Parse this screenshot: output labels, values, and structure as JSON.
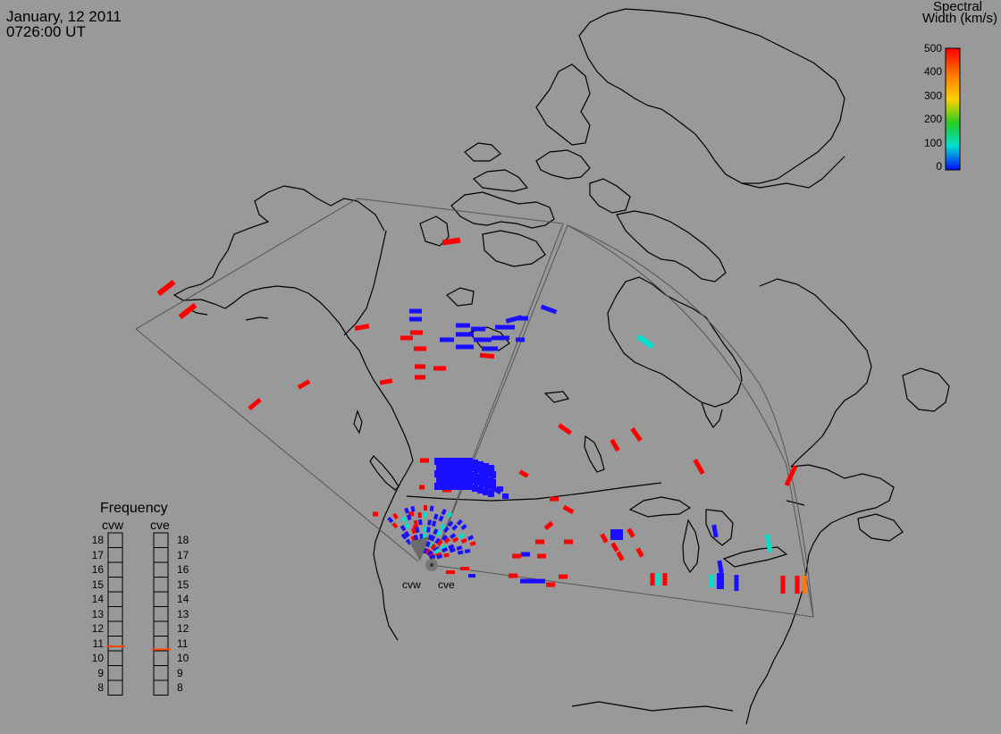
{
  "header": {
    "date": "January, 12 2011",
    "time": "0726:00 UT"
  },
  "colorbar": {
    "title_line1": "Spectral",
    "title_line2": "Width (km/s)",
    "ticks": [
      "500",
      "400",
      "300",
      "200",
      "100",
      "0"
    ],
    "colors": [
      "#ff0000",
      "#ff7a00",
      "#ffd000",
      "#22cc22",
      "#00e0d0",
      "#0010ff"
    ]
  },
  "frequency": {
    "title": "Frequency",
    "radars": [
      "cvw",
      "cve"
    ],
    "scale": [
      "18",
      "17",
      "16",
      "15",
      "14",
      "13",
      "12",
      "11",
      "10",
      "9",
      "8"
    ],
    "cvw_value_mhz": 10.8,
    "cve_value_mhz": 10.6,
    "marker_color": "#ff4400"
  },
  "radar_sites": [
    "cvw",
    "cve"
  ],
  "colors": {
    "background": "#999999",
    "coastline": "#000000",
    "fov": "#555555"
  }
}
